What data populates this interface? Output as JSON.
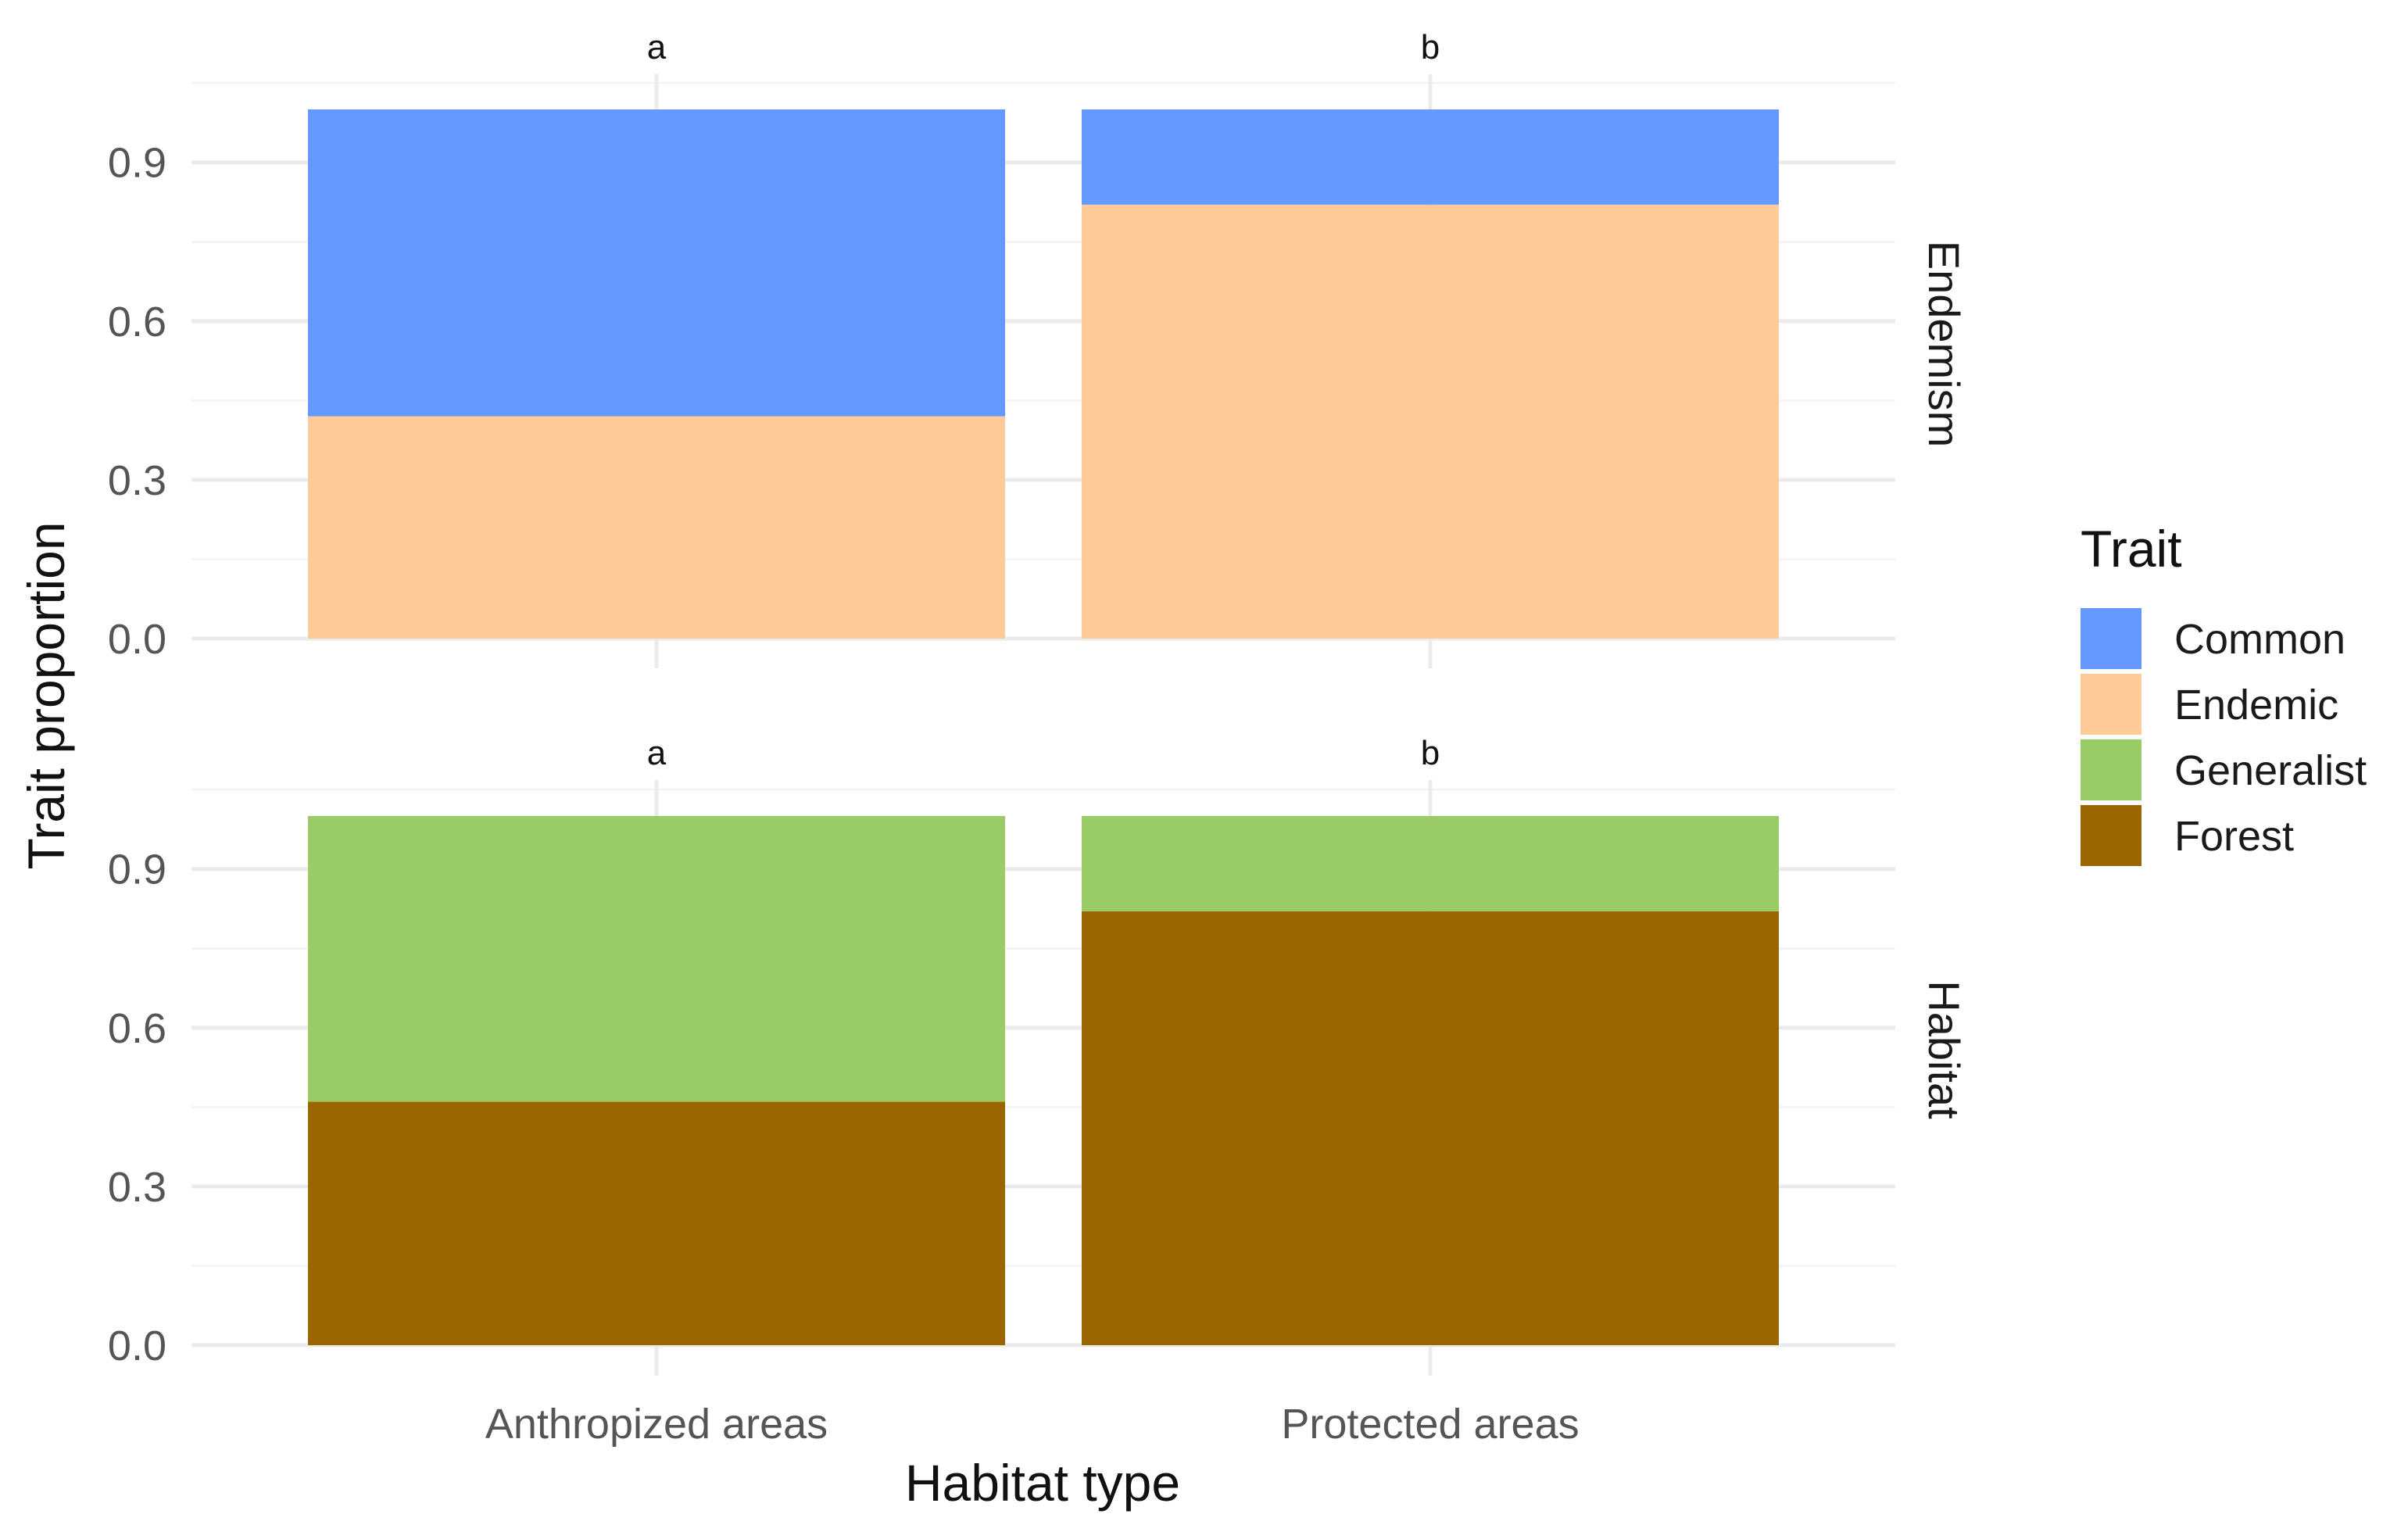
{
  "chart_data": {
    "type": "bar",
    "stacked": true,
    "xlabel": "Habitat type",
    "ylabel": "Trait proportion",
    "categories": [
      "Anthropized areas",
      "Protected areas"
    ],
    "ylim": [
      0,
      1
    ],
    "yticks": [
      0.0,
      0.3,
      0.6,
      0.9
    ],
    "ytick_labels": [
      "0.0",
      "0.3",
      "0.6",
      "0.9"
    ],
    "grid": true,
    "legend": {
      "title": "Trait",
      "position": "right",
      "entries": [
        {
          "name": "Common",
          "color": "#6699FF"
        },
        {
          "name": "Endemic",
          "color": "#FFCC99"
        },
        {
          "name": "Generalist",
          "color": "#99CC66"
        },
        {
          "name": "Forest",
          "color": "#996600"
        }
      ]
    },
    "panels": [
      {
        "strip": "Endemism",
        "significance": [
          "a",
          "b"
        ],
        "series": [
          {
            "name": "Endemic",
            "values": [
              0.42,
              0.82
            ]
          },
          {
            "name": "Common",
            "values": [
              0.58,
              0.18
            ]
          }
        ]
      },
      {
        "strip": "Habitat",
        "significance": [
          "a",
          "b"
        ],
        "series": [
          {
            "name": "Forest",
            "values": [
              0.46,
              0.82
            ]
          },
          {
            "name": "Generalist",
            "values": [
              0.54,
              0.18
            ]
          }
        ]
      }
    ]
  }
}
